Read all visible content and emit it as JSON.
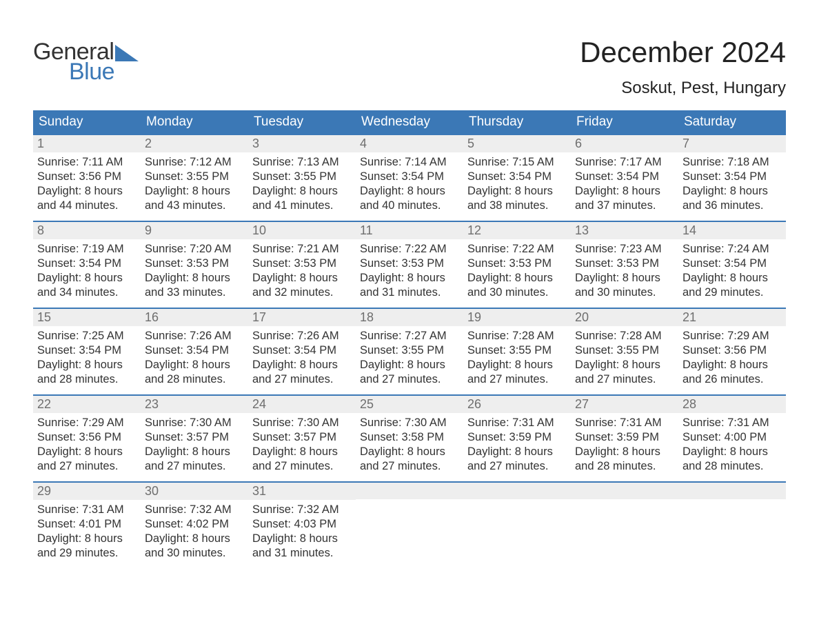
{
  "logo": {
    "text_general": "General",
    "text_blue": "Blue",
    "accent_color": "#3b78b6"
  },
  "title": "December 2024",
  "location": "Soskut, Pest, Hungary",
  "colors": {
    "header_bg": "#3b78b6",
    "header_text": "#ffffff",
    "daynum_bg": "#eeeeee",
    "daynum_text": "#6e6e6e",
    "body_text": "#333333",
    "row_border": "#3b78b6",
    "page_bg": "#ffffff"
  },
  "font": {
    "family": "Arial",
    "title_size_pt": 32,
    "location_size_pt": 18,
    "dayheader_size_pt": 14,
    "body_size_pt": 12
  },
  "day_headers": [
    "Sunday",
    "Monday",
    "Tuesday",
    "Wednesday",
    "Thursday",
    "Friday",
    "Saturday"
  ],
  "weeks": [
    [
      {
        "n": "1",
        "sunrise": "Sunrise: 7:11 AM",
        "sunset": "Sunset: 3:56 PM",
        "d1": "Daylight: 8 hours",
        "d2": "and 44 minutes."
      },
      {
        "n": "2",
        "sunrise": "Sunrise: 7:12 AM",
        "sunset": "Sunset: 3:55 PM",
        "d1": "Daylight: 8 hours",
        "d2": "and 43 minutes."
      },
      {
        "n": "3",
        "sunrise": "Sunrise: 7:13 AM",
        "sunset": "Sunset: 3:55 PM",
        "d1": "Daylight: 8 hours",
        "d2": "and 41 minutes."
      },
      {
        "n": "4",
        "sunrise": "Sunrise: 7:14 AM",
        "sunset": "Sunset: 3:54 PM",
        "d1": "Daylight: 8 hours",
        "d2": "and 40 minutes."
      },
      {
        "n": "5",
        "sunrise": "Sunrise: 7:15 AM",
        "sunset": "Sunset: 3:54 PM",
        "d1": "Daylight: 8 hours",
        "d2": "and 38 minutes."
      },
      {
        "n": "6",
        "sunrise": "Sunrise: 7:17 AM",
        "sunset": "Sunset: 3:54 PM",
        "d1": "Daylight: 8 hours",
        "d2": "and 37 minutes."
      },
      {
        "n": "7",
        "sunrise": "Sunrise: 7:18 AM",
        "sunset": "Sunset: 3:54 PM",
        "d1": "Daylight: 8 hours",
        "d2": "and 36 minutes."
      }
    ],
    [
      {
        "n": "8",
        "sunrise": "Sunrise: 7:19 AM",
        "sunset": "Sunset: 3:54 PM",
        "d1": "Daylight: 8 hours",
        "d2": "and 34 minutes."
      },
      {
        "n": "9",
        "sunrise": "Sunrise: 7:20 AM",
        "sunset": "Sunset: 3:53 PM",
        "d1": "Daylight: 8 hours",
        "d2": "and 33 minutes."
      },
      {
        "n": "10",
        "sunrise": "Sunrise: 7:21 AM",
        "sunset": "Sunset: 3:53 PM",
        "d1": "Daylight: 8 hours",
        "d2": "and 32 minutes."
      },
      {
        "n": "11",
        "sunrise": "Sunrise: 7:22 AM",
        "sunset": "Sunset: 3:53 PM",
        "d1": "Daylight: 8 hours",
        "d2": "and 31 minutes."
      },
      {
        "n": "12",
        "sunrise": "Sunrise: 7:22 AM",
        "sunset": "Sunset: 3:53 PM",
        "d1": "Daylight: 8 hours",
        "d2": "and 30 minutes."
      },
      {
        "n": "13",
        "sunrise": "Sunrise: 7:23 AM",
        "sunset": "Sunset: 3:53 PM",
        "d1": "Daylight: 8 hours",
        "d2": "and 30 minutes."
      },
      {
        "n": "14",
        "sunrise": "Sunrise: 7:24 AM",
        "sunset": "Sunset: 3:54 PM",
        "d1": "Daylight: 8 hours",
        "d2": "and 29 minutes."
      }
    ],
    [
      {
        "n": "15",
        "sunrise": "Sunrise: 7:25 AM",
        "sunset": "Sunset: 3:54 PM",
        "d1": "Daylight: 8 hours",
        "d2": "and 28 minutes."
      },
      {
        "n": "16",
        "sunrise": "Sunrise: 7:26 AM",
        "sunset": "Sunset: 3:54 PM",
        "d1": "Daylight: 8 hours",
        "d2": "and 28 minutes."
      },
      {
        "n": "17",
        "sunrise": "Sunrise: 7:26 AM",
        "sunset": "Sunset: 3:54 PM",
        "d1": "Daylight: 8 hours",
        "d2": "and 27 minutes."
      },
      {
        "n": "18",
        "sunrise": "Sunrise: 7:27 AM",
        "sunset": "Sunset: 3:55 PM",
        "d1": "Daylight: 8 hours",
        "d2": "and 27 minutes."
      },
      {
        "n": "19",
        "sunrise": "Sunrise: 7:28 AM",
        "sunset": "Sunset: 3:55 PM",
        "d1": "Daylight: 8 hours",
        "d2": "and 27 minutes."
      },
      {
        "n": "20",
        "sunrise": "Sunrise: 7:28 AM",
        "sunset": "Sunset: 3:55 PM",
        "d1": "Daylight: 8 hours",
        "d2": "and 27 minutes."
      },
      {
        "n": "21",
        "sunrise": "Sunrise: 7:29 AM",
        "sunset": "Sunset: 3:56 PM",
        "d1": "Daylight: 8 hours",
        "d2": "and 26 minutes."
      }
    ],
    [
      {
        "n": "22",
        "sunrise": "Sunrise: 7:29 AM",
        "sunset": "Sunset: 3:56 PM",
        "d1": "Daylight: 8 hours",
        "d2": "and 27 minutes."
      },
      {
        "n": "23",
        "sunrise": "Sunrise: 7:30 AM",
        "sunset": "Sunset: 3:57 PM",
        "d1": "Daylight: 8 hours",
        "d2": "and 27 minutes."
      },
      {
        "n": "24",
        "sunrise": "Sunrise: 7:30 AM",
        "sunset": "Sunset: 3:57 PM",
        "d1": "Daylight: 8 hours",
        "d2": "and 27 minutes."
      },
      {
        "n": "25",
        "sunrise": "Sunrise: 7:30 AM",
        "sunset": "Sunset: 3:58 PM",
        "d1": "Daylight: 8 hours",
        "d2": "and 27 minutes."
      },
      {
        "n": "26",
        "sunrise": "Sunrise: 7:31 AM",
        "sunset": "Sunset: 3:59 PM",
        "d1": "Daylight: 8 hours",
        "d2": "and 27 minutes."
      },
      {
        "n": "27",
        "sunrise": "Sunrise: 7:31 AM",
        "sunset": "Sunset: 3:59 PM",
        "d1": "Daylight: 8 hours",
        "d2": "and 28 minutes."
      },
      {
        "n": "28",
        "sunrise": "Sunrise: 7:31 AM",
        "sunset": "Sunset: 4:00 PM",
        "d1": "Daylight: 8 hours",
        "d2": "and 28 minutes."
      }
    ],
    [
      {
        "n": "29",
        "sunrise": "Sunrise: 7:31 AM",
        "sunset": "Sunset: 4:01 PM",
        "d1": "Daylight: 8 hours",
        "d2": "and 29 minutes."
      },
      {
        "n": "30",
        "sunrise": "Sunrise: 7:32 AM",
        "sunset": "Sunset: 4:02 PM",
        "d1": "Daylight: 8 hours",
        "d2": "and 30 minutes."
      },
      {
        "n": "31",
        "sunrise": "Sunrise: 7:32 AM",
        "sunset": "Sunset: 4:03 PM",
        "d1": "Daylight: 8 hours",
        "d2": "and 31 minutes."
      },
      null,
      null,
      null,
      null
    ]
  ]
}
